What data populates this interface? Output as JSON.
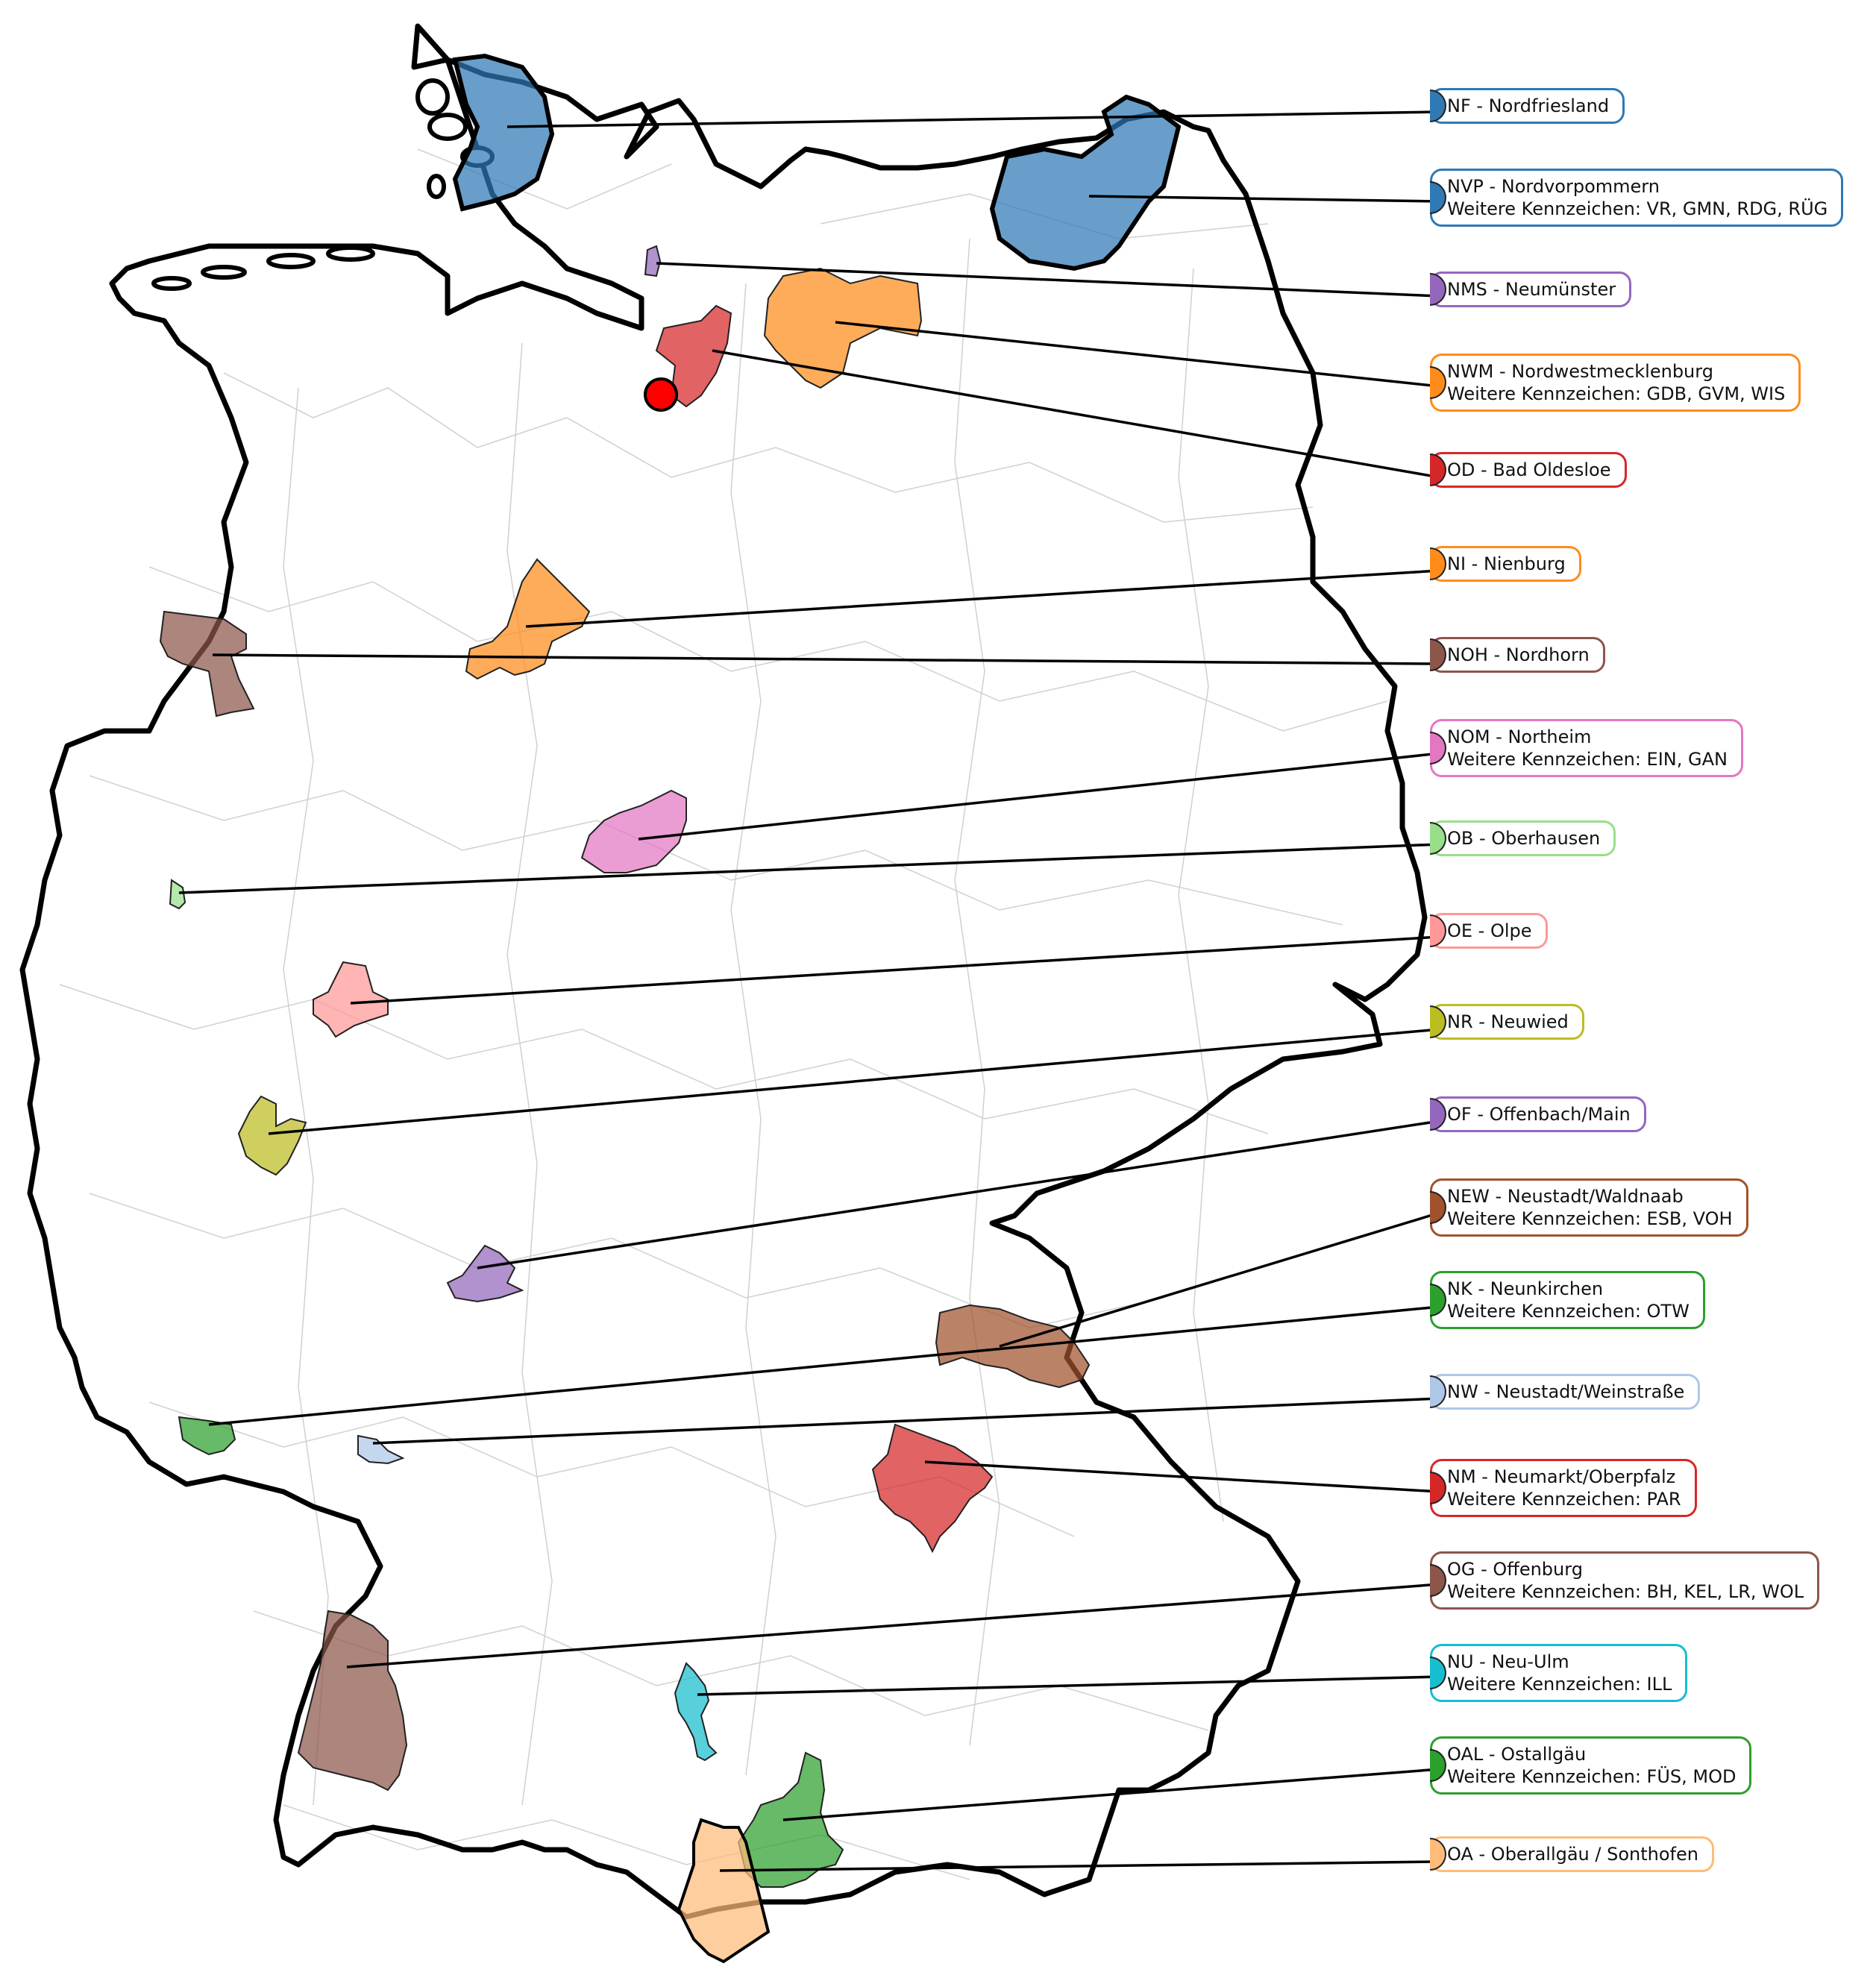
{
  "map": {
    "marker": {
      "color": "#ff0000",
      "name": "reference-point"
    },
    "regions": [
      {
        "id": "NF",
        "label": "NF - Nordfriesland",
        "extra": "",
        "color": "#2f79b5"
      },
      {
        "id": "NVP",
        "label": "NVP - Nordvorpommern",
        "extra": "Weitere Kennzeichen: VR, GMN, RDG, RÜG",
        "color": "#2f79b5"
      },
      {
        "id": "NMS",
        "label": "NMS - Neumünster",
        "extra": "",
        "color": "#9467bd"
      },
      {
        "id": "NWM",
        "label": "NWM - Nordwestmecklenburg",
        "extra": "Weitere Kennzeichen: GDB, GVM, WIS",
        "color": "#ff8c1a"
      },
      {
        "id": "OD",
        "label": "OD - Bad Oldesloe",
        "extra": "",
        "color": "#d62728"
      },
      {
        "id": "NI",
        "label": "NI - Nienburg",
        "extra": "",
        "color": "#ff8c1a"
      },
      {
        "id": "NOH",
        "label": "NOH - Nordhorn",
        "extra": "",
        "color": "#8c564b"
      },
      {
        "id": "NOM",
        "label": "NOM - Northeim",
        "extra": "Weitere Kennzeichen: EIN, GAN",
        "color": "#e377c2"
      },
      {
        "id": "OB",
        "label": "OB - Oberhausen",
        "extra": "",
        "color": "#98df8a"
      },
      {
        "id": "OE",
        "label": "OE - Olpe",
        "extra": "",
        "color": "#ff9896"
      },
      {
        "id": "NR",
        "label": "NR - Neuwied",
        "extra": "",
        "color": "#bcbd22"
      },
      {
        "id": "OF",
        "label": "OF - Offenbach/Main",
        "extra": "",
        "color": "#9467bd"
      },
      {
        "id": "NEW",
        "label": "NEW - Neustadt/Waldnaab",
        "extra": "Weitere Kennzeichen: ESB, VOH",
        "color": "#a0522d"
      },
      {
        "id": "NK",
        "label": "NK - Neunkirchen",
        "extra": "Weitere Kennzeichen: OTW",
        "color": "#2ca02c"
      },
      {
        "id": "NW",
        "label": "NW - Neustadt/Weinstraße",
        "extra": "",
        "color": "#aec7e8"
      },
      {
        "id": "NM",
        "label": "NM - Neumarkt/Oberpfalz",
        "extra": "Weitere Kennzeichen: PAR",
        "color": "#d62728"
      },
      {
        "id": "OG",
        "label": "OG - Offenburg",
        "extra": "Weitere Kennzeichen: BH, KEL, LR, WOL",
        "color": "#8c564b"
      },
      {
        "id": "NU",
        "label": "NU - Neu-Ulm",
        "extra": "Weitere Kennzeichen: ILL",
        "color": "#17becf"
      },
      {
        "id": "OAL",
        "label": "OAL - Ostallgäu",
        "extra": "Weitere Kennzeichen: FÜS, MOD",
        "color": "#2ca02c"
      },
      {
        "id": "OA",
        "label": "OA - Oberallgäu / Sonthofen",
        "extra": "",
        "color": "#ffbb78"
      }
    ]
  }
}
